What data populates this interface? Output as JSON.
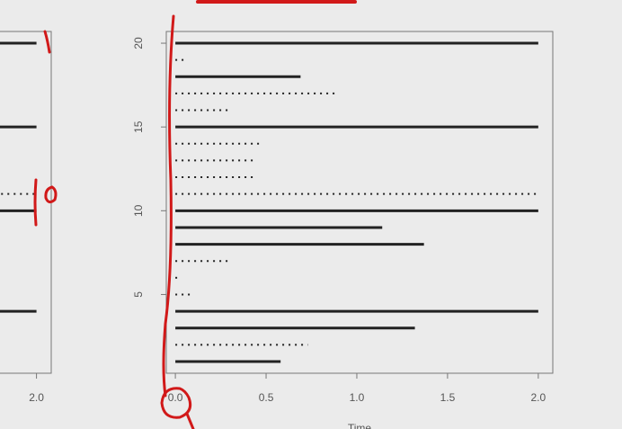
{
  "chart_data": [
    {
      "type": "segments",
      "y": [
        20,
        15,
        11,
        10,
        4
      ],
      "values": [
        2.0,
        2.0,
        2.0,
        2.0,
        2.0
      ],
      "line_styles": [
        "solid",
        "solid",
        "dotted",
        "solid",
        "solid"
      ],
      "color": "#222222",
      "xlim": [
        -0.05,
        2.08
      ],
      "ylim": [
        0.3,
        20.7
      ],
      "xticks": [
        {
          "value": 2.0,
          "label": "2.0"
        }
      ],
      "yticks": []
    },
    {
      "type": "segments",
      "x_label": "Time",
      "y": [
        20,
        19,
        18,
        17,
        16,
        15,
        14,
        13,
        12,
        11,
        10,
        9,
        8,
        7,
        6,
        5,
        4,
        3,
        2,
        1
      ],
      "values": [
        2.0,
        0.05,
        0.69,
        0.88,
        0.31,
        2.0,
        0.47,
        0.43,
        0.43,
        2.0,
        2.0,
        1.14,
        1.37,
        0.31,
        0.01,
        0.08,
        2.0,
        1.32,
        0.73,
        0.58
      ],
      "line_styles": [
        "solid",
        "dotted",
        "solid",
        "dotted",
        "dotted",
        "solid",
        "dotted",
        "dotted",
        "dotted",
        "dotted",
        "solid",
        "solid",
        "solid",
        "dotted",
        "dotted",
        "dotted",
        "solid",
        "solid",
        "dotted",
        "solid"
      ],
      "color": "#222222",
      "xlim": [
        -0.05,
        2.08
      ],
      "ylim": [
        0.3,
        20.7
      ],
      "xticks": [
        {
          "value": 0,
          "label": "0.0"
        },
        0.5,
        {
          "value": 1,
          "label": "1.0"
        },
        1.5,
        {
          "value": 2,
          "label": "2.0"
        }
      ],
      "yticks": [
        5,
        10,
        15,
        20
      ]
    }
  ]
}
